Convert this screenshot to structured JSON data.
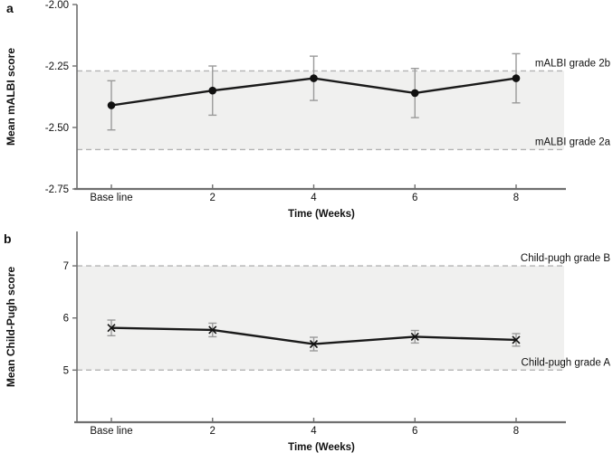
{
  "colors": {
    "band": "#f0f0ef",
    "dashed_line": "#b3b3b3",
    "series": "#1a1a1a",
    "marker": "#111111",
    "error_bar": "#9a9a9a",
    "axis": "#6f6f6f",
    "text": "#111111"
  },
  "chart_data": [
    {
      "id": "panel_a",
      "panel_label": "a",
      "type": "line",
      "marker": "circle",
      "title": "",
      "xlabel": "Time (Weeks)",
      "ylabel": "Mean mALBI score",
      "x_categories": [
        "Base line",
        "2",
        "4",
        "6",
        "8"
      ],
      "values": [
        -2.41,
        -2.35,
        -2.3,
        -2.36,
        -2.3
      ],
      "errors": [
        0.1,
        0.1,
        0.09,
        0.1,
        0.1
      ],
      "ylim": [
        -2.75,
        -2.0
      ],
      "yticks": [
        -2.0,
        -2.25,
        -2.5,
        -2.75
      ],
      "ytick_labels": [
        "-2.00",
        "-2.25",
        "-2.50",
        "-2.75"
      ],
      "grid": false,
      "legend": "none",
      "reference_lines": [
        {
          "value": -2.27,
          "label": "mALBI grade 2b"
        },
        {
          "value": -2.59,
          "label": "mALBI grade 2a"
        }
      ],
      "band": {
        "from": -2.59,
        "to": -2.27
      }
    },
    {
      "id": "panel_b",
      "panel_label": "b",
      "type": "line",
      "marker": "x",
      "title": "",
      "xlabel": "Time (Weeks)",
      "ylabel": "Mean Child-Pugh score",
      "x_categories": [
        "Base line",
        "2",
        "4",
        "6",
        "8"
      ],
      "values": [
        5.81,
        5.77,
        5.5,
        5.64,
        5.58
      ],
      "errors": [
        0.15,
        0.13,
        0.13,
        0.12,
        0.12
      ],
      "ylim": [
        4.0,
        7.66
      ],
      "yticks": [
        7,
        6,
        5
      ],
      "ytick_labels": [
        "7",
        "6",
        "5"
      ],
      "grid": false,
      "legend": "none",
      "reference_lines": [
        {
          "value": 7,
          "label": "Child-pugh grade B"
        },
        {
          "value": 5,
          "label": "Child-pugh grade A"
        }
      ],
      "band": {
        "from": 5,
        "to": 7
      }
    }
  ]
}
